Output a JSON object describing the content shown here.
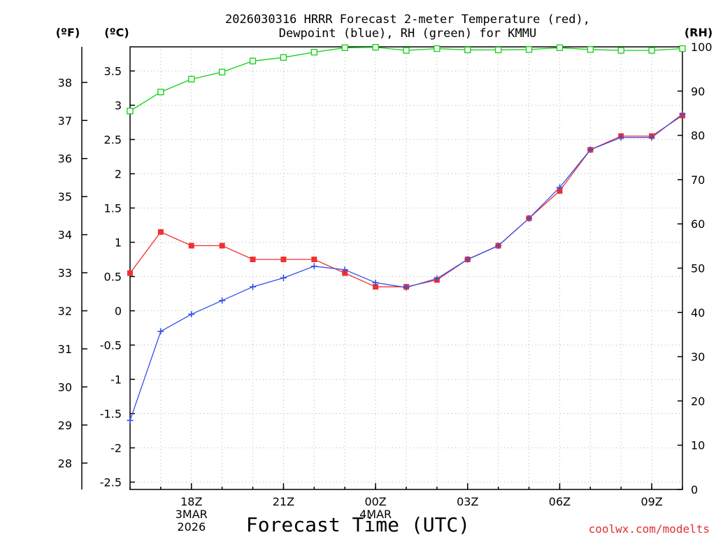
{
  "chart_data": {
    "type": "line",
    "title_lines": [
      "2026030316 HRRR Forecast 2-meter Temperature (red),",
      "Dewpoint (blue), RH (green) for KMMU"
    ],
    "xlabel": "Forecast Time (UTC)",
    "credit": "coolwx.com/modelts",
    "units": {
      "fahrenheit": "(ºF)",
      "celsius": "(ºC)",
      "rh": "(RH)"
    },
    "x": [
      16,
      17,
      18,
      19,
      20,
      21,
      22,
      23,
      24,
      25,
      26,
      27,
      28,
      29,
      30,
      31,
      32,
      33,
      34
    ],
    "xlim": [
      16,
      34
    ],
    "x_ticks": [
      {
        "x": 18,
        "lines": [
          "18Z",
          "3MAR",
          "2026"
        ]
      },
      {
        "x": 21,
        "lines": [
          "21Z"
        ]
      },
      {
        "x": 24,
        "lines": [
          "00Z",
          "4MAR"
        ]
      },
      {
        "x": 27,
        "lines": [
          "03Z"
        ]
      },
      {
        "x": 30,
        "lines": [
          "06Z"
        ]
      },
      {
        "x": 33,
        "lines": [
          "09Z"
        ]
      }
    ],
    "ylim_c": [
      -2.6,
      3.85
    ],
    "yticks_c": [
      "-2.5",
      "-2",
      "-1.5",
      "-1",
      "-0.5",
      "0",
      "0.5",
      "1",
      "1.5",
      "2",
      "2.5",
      "3",
      "3.5"
    ],
    "yticks_f": [
      "28",
      "29",
      "30",
      "31",
      "32",
      "33",
      "34",
      "35",
      "36",
      "37",
      "38"
    ],
    "ylim_rh": [
      0,
      100
    ],
    "yticks_rh": [
      "0",
      "10",
      "20",
      "30",
      "40",
      "50",
      "60",
      "70",
      "80",
      "90",
      "100"
    ],
    "series": [
      {
        "name": "2-meter Temperature",
        "axis": "celsius",
        "color": "#f03030",
        "marker": "filled-square",
        "values": [
          0.55,
          1.15,
          0.95,
          0.95,
          0.75,
          0.75,
          0.75,
          0.55,
          0.35,
          0.35,
          0.45,
          0.75,
          0.95,
          1.35,
          1.75,
          2.35,
          2.55,
          2.55,
          2.85
        ]
      },
      {
        "name": "Dewpoint",
        "axis": "celsius",
        "color": "#3050e8",
        "marker": "plus",
        "values": [
          -1.6,
          -0.3,
          -0.05,
          0.15,
          0.35,
          0.48,
          0.65,
          0.6,
          0.41,
          0.34,
          0.47,
          0.75,
          0.95,
          1.35,
          1.8,
          2.35,
          2.53,
          2.53,
          2.87
        ]
      },
      {
        "name": "RH",
        "axis": "rh",
        "color": "#10d010",
        "marker": "open-square",
        "values": [
          85.5,
          89.8,
          92.7,
          94.3,
          96.8,
          97.6,
          98.8,
          99.8,
          99.9,
          99.2,
          99.6,
          99.3,
          99.3,
          99.4,
          99.8,
          99.4,
          99.2,
          99.2,
          99.6
        ]
      }
    ]
  }
}
